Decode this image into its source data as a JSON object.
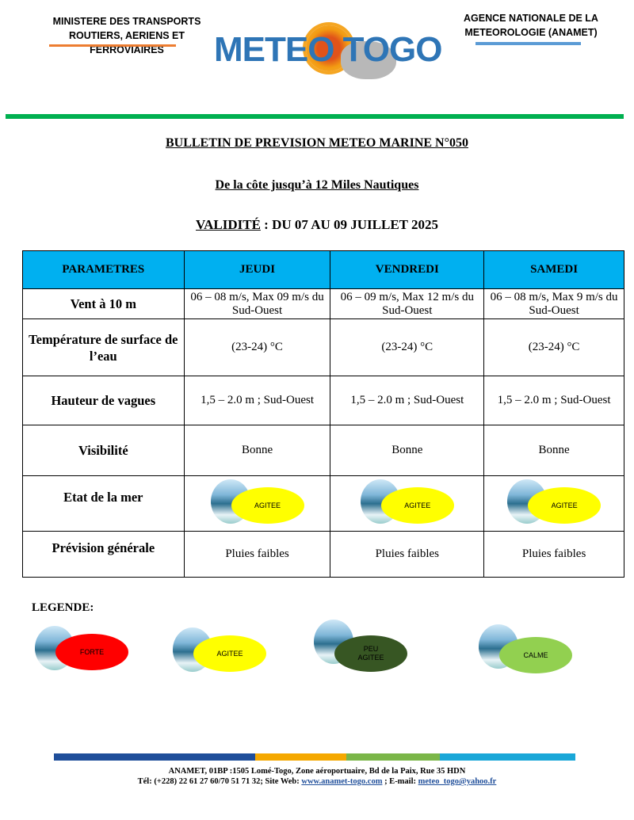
{
  "header": {
    "ministry": [
      "MINISTERE DES TRANSPORTS",
      "ROUTIERS, AERIENS ET FERROVIAIRES"
    ],
    "agency": [
      "AGENCE NATIONALE DE LA",
      "METEOROLOGIE (ANAMET)"
    ],
    "logo_text": "METEO TOGO"
  },
  "bulletin": {
    "title": "BULLETIN DE PREVISION METEO MARINE N°050",
    "subtitle": "De la côte jusqu’à 12 Miles Nautiques",
    "validity_label": "VALIDITÉ",
    "validity_value": " : DU 07 AU 09 JUILLET 2025"
  },
  "table": {
    "headers": [
      "PARAMETRES",
      "JEUDI",
      "VENDREDI",
      "SAMEDI"
    ],
    "rows": [
      {
        "param": "Vent à 10 m",
        "values": [
          "06 – 08 m/s, Max 09 m/s du Sud-Ouest",
          "06 – 09 m/s, Max 12 m/s du Sud-Ouest",
          "06 – 08 m/s, Max 9 m/s du Sud-Ouest"
        ]
      },
      {
        "param": "Température de surface de l’eau",
        "values": [
          "(23-24) °C",
          "(23-24) °C",
          "(23-24) °C"
        ]
      },
      {
        "param": "Hauteur de vagues",
        "values": [
          "1,5 – 2.0 m ; Sud-Ouest",
          "1,5 – 2.0 m ; Sud-Ouest",
          "1,5 – 2.0 m ; Sud-Ouest"
        ]
      },
      {
        "param": "Visibilité",
        "values": [
          "Bonne",
          "Bonne",
          "Bonne"
        ]
      },
      {
        "param": "Etat de la mer",
        "values": [
          "AGITEE",
          "AGITEE",
          "AGITEE"
        ]
      },
      {
        "param": "Prévision générale",
        "values": [
          "Pluies faibles",
          "Pluies faibles",
          "Pluies faibles"
        ]
      }
    ]
  },
  "legend": {
    "title": "LEGENDE:",
    "items": [
      {
        "label": "FORTE",
        "color": "#ff0000"
      },
      {
        "label": "AGITEE",
        "color": "#ffff00"
      },
      {
        "label1": "PEU",
        "label2": "AGITEE",
        "color": "#375623"
      },
      {
        "label": "CALME",
        "color": "#92d050"
      }
    ]
  },
  "colors": {
    "sea_state_agitee": "#ffff00",
    "header_bg": "#00b0f0",
    "rule_green": "#00b050"
  },
  "footer": {
    "line1": "ANAMET, 01BP :1505 Lomé-Togo, Zone aéroportuaire, Bd de la Paix, Rue 35 HDN",
    "tel": "Tél: (+228) 22 61 27 60/70 51 71 32; Site Web: ",
    "website": "www.anamet-togo.com",
    "email_label": " ; E-mail: ",
    "email": "meteo_togo@yahoo.fr"
  }
}
